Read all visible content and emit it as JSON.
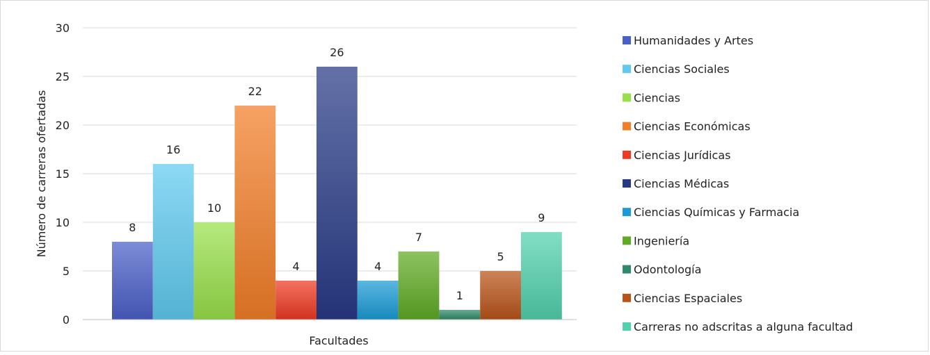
{
  "chart_data": {
    "type": "bar",
    "title": "",
    "xlabel": "Facultades",
    "ylabel": "Número de carreras ofertadas",
    "ylim": [
      0,
      30
    ],
    "yticks": [
      "0",
      "5",
      "10",
      "15",
      "20",
      "25",
      "30"
    ],
    "grid": true,
    "legend_position": "right",
    "series": [
      {
        "name": "Humanidades y Artes",
        "value": 8,
        "label": "8",
        "color": "#4a5fc8"
      },
      {
        "name": "Ciencias Sociales",
        "value": 16,
        "label": "16",
        "color": "#5fcaf0"
      },
      {
        "name": "Ciencias",
        "value": 10,
        "label": "10",
        "color": "#98e04a"
      },
      {
        "name": "Ciencias Económicas",
        "value": 22,
        "label": "22",
        "color": "#f27e28"
      },
      {
        "name": "Ciencias Jurídicas",
        "value": 4,
        "label": "4",
        "color": "#ee3a22"
      },
      {
        "name": "Ciencias Médicas",
        "value": 26,
        "label": "26",
        "color": "#283a86"
      },
      {
        "name": "Ciencias Químicas y Farmacia",
        "value": 4,
        "label": "4",
        "color": "#1a9bd6"
      },
      {
        "name": "Ingeniería",
        "value": 7,
        "label": "7",
        "color": "#60ab24"
      },
      {
        "name": "Odontología",
        "value": 1,
        "label": "1",
        "color": "#2e8a68"
      },
      {
        "name": "Ciencias Espaciales",
        "value": 5,
        "label": "5",
        "color": "#b85418"
      },
      {
        "name": "Carreras no adscritas a alguna facultad",
        "value": 9,
        "label": "9",
        "color": "#52d1ad"
      }
    ]
  }
}
